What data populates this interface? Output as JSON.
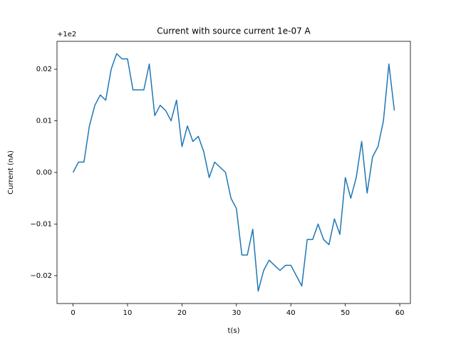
{
  "chart_data": {
    "type": "line",
    "title": "Current with source current 1e-07 A",
    "x_label": "t(s)",
    "y_label": "Current (nA)",
    "y_offset_label": "+1e2",
    "color": "#1f77b4",
    "x": [
      0,
      1,
      2,
      3,
      4,
      5,
      6,
      7,
      8,
      9,
      10,
      11,
      12,
      13,
      14,
      15,
      16,
      17,
      18,
      19,
      20,
      21,
      22,
      23,
      24,
      25,
      26,
      27,
      28,
      29,
      30,
      31,
      32,
      33,
      34,
      35,
      36,
      37,
      38,
      39,
      40,
      41,
      42,
      43,
      44,
      45,
      46,
      47,
      48,
      49,
      50,
      51,
      52,
      53,
      54,
      55,
      56,
      57,
      58,
      59
    ],
    "values": [
      0.0,
      0.002,
      0.002,
      0.009,
      0.013,
      0.015,
      0.014,
      0.02,
      0.023,
      0.022,
      0.022,
      0.016,
      0.016,
      0.016,
      0.021,
      0.011,
      0.013,
      0.012,
      0.01,
      0.014,
      0.005,
      0.009,
      0.006,
      0.007,
      0.004,
      -0.001,
      0.002,
      0.001,
      0.0,
      -0.005,
      -0.007,
      -0.016,
      -0.016,
      -0.011,
      -0.023,
      -0.019,
      -0.017,
      -0.018,
      -0.019,
      -0.018,
      -0.018,
      -0.02,
      -0.022,
      -0.013,
      -0.013,
      -0.01,
      -0.013,
      -0.014,
      -0.009,
      -0.012,
      -0.001,
      -0.005,
      -0.001,
      0.006,
      -0.004,
      0.003,
      0.005,
      0.01,
      0.021,
      0.012
    ],
    "xlim": [
      -2.95,
      61.95
    ],
    "ylim": [
      -0.0254,
      0.0254
    ],
    "xticks": [
      0,
      10,
      20,
      30,
      40,
      50,
      60
    ],
    "yticks": [
      {
        "value": -0.02,
        "label": "−0.02"
      },
      {
        "value": -0.01,
        "label": "−0.01"
      },
      {
        "value": 0,
        "label": "0.00"
      },
      0.01,
      0.02
    ]
  }
}
